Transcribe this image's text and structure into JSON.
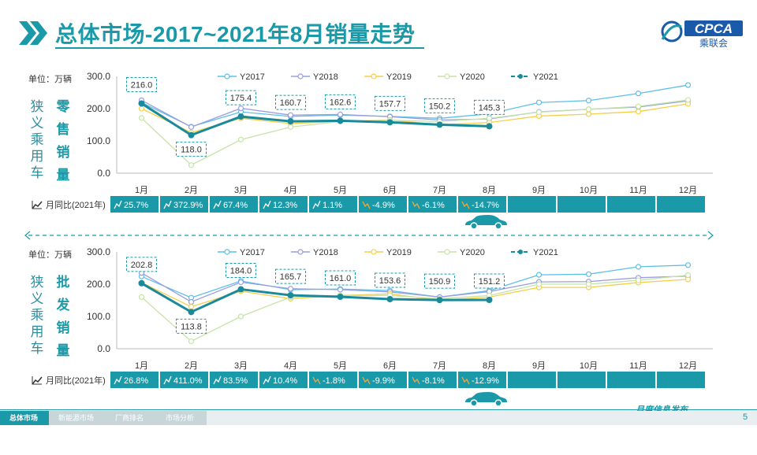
{
  "header": {
    "title": "总体市场-2017~2021年8月销量走势",
    "logo_text": "CPCA",
    "logo_sub": "乘联会",
    "logo_mark": "CPCA"
  },
  "colors": {
    "accent": "#1a9aa8",
    "Y2017": "#5bc0e8",
    "Y2018": "#9a9ee0",
    "Y2019": "#f5cf4a",
    "Y2020": "#c6e3a8",
    "Y2021": "#1a8a9a",
    "yoy_positive": "#ffffff",
    "yoy_negative": "#f5a53c"
  },
  "months": [
    "1月",
    "2月",
    "3月",
    "4月",
    "5月",
    "6月",
    "7月",
    "8月",
    "9月",
    "10月",
    "11月",
    "12月"
  ],
  "yoy_label": "月同比(2021年)",
  "unit_label": "单位：万辆",
  "divider_icon": "car-icon",
  "charts": [
    {
      "side_label_left": [
        "狭",
        "义",
        "乘",
        "用",
        "车"
      ],
      "side_label_right": [
        "零",
        "售",
        "销",
        "量"
      ],
      "chart_data": {
        "type": "line",
        "title": "",
        "ylabel": "单位：万辆",
        "ylim": [
          0,
          300
        ],
        "yticks": [
          "0.0",
          "100.0",
          "200.0",
          "300.0"
        ],
        "categories": [
          "1月",
          "2月",
          "3月",
          "4月",
          "5月",
          "6月",
          "7月",
          "8月",
          "9月",
          "10月",
          "11月",
          "12月"
        ],
        "series": [
          {
            "name": "Y2017",
            "values": [
              219,
              144,
              190,
              176,
              180,
              176,
              170,
              184,
              219,
              225,
              247,
              273
            ]
          },
          {
            "name": "Y2018",
            "values": [
              226,
              143,
              201,
              180,
              182,
              175,
              165,
              168,
              190,
              198,
              205,
              224
            ]
          },
          {
            "name": "Y2019",
            "values": [
              200,
              126,
              170,
              154,
              160,
              165,
              150,
              157,
              177,
              183,
              191,
              215
            ]
          },
          {
            "name": "Y2020",
            "values": [
              171,
              25,
              104,
              143,
              160,
              164,
              160,
              170,
              189,
              198,
              207,
              227
            ]
          },
          {
            "name": "Y2021",
            "values": [
              216.0,
              118.0,
              175.4,
              160.7,
              162.6,
              157.7,
              150.2,
              145.3
            ]
          }
        ],
        "labels": [
          "216.0",
          "118.0",
          "175.4",
          "160.7",
          "162.6",
          "157.7",
          "150.2",
          "145.3"
        ],
        "yoy": [
          "25.7%",
          "372.9%",
          "67.4%",
          "12.3%",
          "1.1%",
          "-4.9%",
          "-6.1%",
          "-14.7%",
          "",
          "",
          "",
          ""
        ]
      }
    },
    {
      "side_label_left": [
        "狭",
        "义",
        "乘",
        "用",
        "车"
      ],
      "side_label_right": [
        "批",
        "发",
        "销",
        "量"
      ],
      "chart_data": {
        "type": "line",
        "title": "",
        "ylabel": "单位：万辆",
        "ylim": [
          0,
          300
        ],
        "yticks": [
          "0.0",
          "100.0",
          "200.0",
          "300.0"
        ],
        "categories": [
          "1月",
          "2月",
          "3月",
          "4月",
          "5月",
          "6月",
          "7月",
          "8月",
          "9月",
          "10月",
          "11月",
          "12月"
        ],
        "series": [
          {
            "name": "Y2017",
            "values": [
              224,
              158,
              210,
              183,
              185,
              180,
              160,
              180,
              229,
              231,
              254,
              259
            ]
          },
          {
            "name": "Y2018",
            "values": [
              235,
              145,
              206,
              186,
              183,
              176,
              160,
              177,
              207,
              208,
              220,
              225
            ]
          },
          {
            "name": "Y2019",
            "values": [
              205,
              130,
              178,
              155,
              165,
              170,
              150,
              160,
              190,
              190,
              205,
              215
            ]
          },
          {
            "name": "Y2020",
            "values": [
              160,
              23,
              100,
              160,
              165,
              165,
              155,
              165,
              200,
              200,
              212,
              228
            ]
          },
          {
            "name": "Y2021",
            "values": [
              202.8,
              113.8,
              184.0,
              165.7,
              161.0,
              153.6,
              150.9,
              151.2
            ]
          }
        ],
        "labels": [
          "202.8",
          "113.8",
          "184.0",
          "165.7",
          "161.0",
          "153.6",
          "150.9",
          "151.2"
        ],
        "yoy": [
          "26.8%",
          "411.0%",
          "83.5%",
          "10.4%",
          "-1.8%",
          "-9.9%",
          "-8.1%",
          "-12.9%",
          "",
          "",
          "",
          ""
        ]
      }
    }
  ],
  "footer": {
    "nav": [
      "总体市场",
      "新能源市场",
      "厂商排名",
      "市场分析"
    ],
    "brand": "月度信息发布",
    "page": "5"
  }
}
